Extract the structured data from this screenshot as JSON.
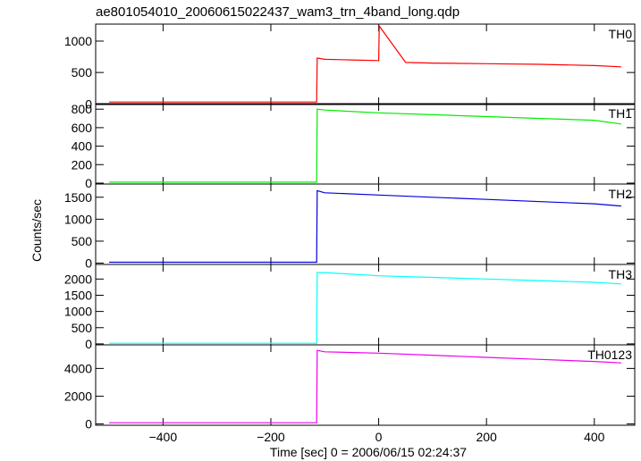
{
  "chart_data": {
    "type": "line",
    "title": "ae801054010_20060615022437_wam3_trn_4band_long.qdp",
    "xlabel": "Time [sec] 0 = 2006/06/15 02:24:37",
    "ylabel": "Counts/sec",
    "xlim": [
      -525,
      475
    ],
    "x_ticks": [
      -400,
      -200,
      0,
      200,
      400
    ],
    "x_tick_labels": [
      "−400",
      "−200",
      "0",
      "200",
      "400"
    ],
    "panels": [
      {
        "name": "TH0",
        "color": "#ff0000",
        "ylim": [
          -10,
          1270
        ],
        "y_ticks": [
          0,
          500,
          1000
        ],
        "y_tick_labels": [
          "0",
          "500",
          "1000"
        ],
        "x": [
          -500,
          -115,
          -114,
          -100,
          -50,
          0,
          1,
          50,
          100,
          200,
          300,
          400,
          450
        ],
        "y": [
          30,
          30,
          730,
          710,
          700,
          690,
          1240,
          660,
          650,
          640,
          630,
          610,
          590
        ]
      },
      {
        "name": "TH1",
        "color": "#00ee00",
        "ylim": [
          -10,
          860
        ],
        "y_ticks": [
          0,
          200,
          400,
          600,
          800
        ],
        "y_tick_labels": [
          "0",
          "200",
          "400",
          "600",
          "800"
        ],
        "x": [
          -500,
          -115,
          -114,
          -100,
          0,
          100,
          200,
          300,
          400,
          450
        ],
        "y": [
          10,
          10,
          800,
          790,
          760,
          740,
          720,
          700,
          680,
          640
        ]
      },
      {
        "name": "TH2",
        "color": "#0000dd",
        "ylim": [
          -30,
          1800
        ],
        "y_ticks": [
          0,
          500,
          1000,
          1500
        ],
        "y_tick_labels": [
          "0",
          "500",
          "1000",
          "1500"
        ],
        "x": [
          -500,
          -115,
          -114,
          -100,
          0,
          100,
          200,
          300,
          400,
          450
        ],
        "y": [
          20,
          20,
          1650,
          1600,
          1550,
          1500,
          1450,
          1400,
          1350,
          1300
        ]
      },
      {
        "name": "TH3",
        "color": "#00ffff",
        "ylim": [
          -30,
          2450
        ],
        "y_ticks": [
          0,
          500,
          1000,
          1500,
          2000
        ],
        "y_tick_labels": [
          "0",
          "500",
          "1000",
          "1500",
          "2000"
        ],
        "x": [
          -500,
          -115,
          -114,
          -100,
          0,
          100,
          200,
          300,
          400,
          450
        ],
        "y": [
          20,
          20,
          2200,
          2200,
          2100,
          2050,
          2000,
          1950,
          1900,
          1850
        ]
      },
      {
        "name": "TH0123",
        "color": "#ee00ee",
        "ylim": [
          -100,
          5700
        ],
        "y_ticks": [
          0,
          2000,
          4000
        ],
        "y_tick_labels": [
          "0",
          "2000",
          "4000"
        ],
        "x": [
          -500,
          -115,
          -114,
          -100,
          0,
          100,
          200,
          300,
          400,
          450
        ],
        "y": [
          80,
          80,
          5300,
          5200,
          5100,
          4950,
          4800,
          4650,
          4500,
          4400
        ]
      }
    ]
  }
}
